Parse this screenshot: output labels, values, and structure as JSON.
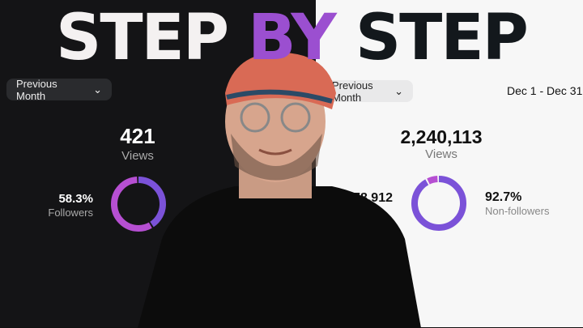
{
  "title": {
    "part1": "STEP",
    "part2": "BY",
    "part3": "STEP"
  },
  "left_panel": {
    "period_button": "Previous Month",
    "views_value": "421",
    "views_label": "Views",
    "followers_pct": "58.3%",
    "followers_label": "Followers",
    "followers_fraction": 0.583
  },
  "right_panel": {
    "period_button": "Previous Month",
    "date_range": "Dec 1 - Dec 31",
    "views_value": "2,240,113",
    "views_label": "Views",
    "left_value": "278,912",
    "nonfollowers_pct": "92.7%",
    "nonfollowers_label": "Non-followers",
    "nonfollowers_fraction": 0.927
  },
  "colors": {
    "accent_purple": "#9b4fd0",
    "donut_violet": "#7b52d8",
    "donut_magenta": "#b64fd2"
  }
}
